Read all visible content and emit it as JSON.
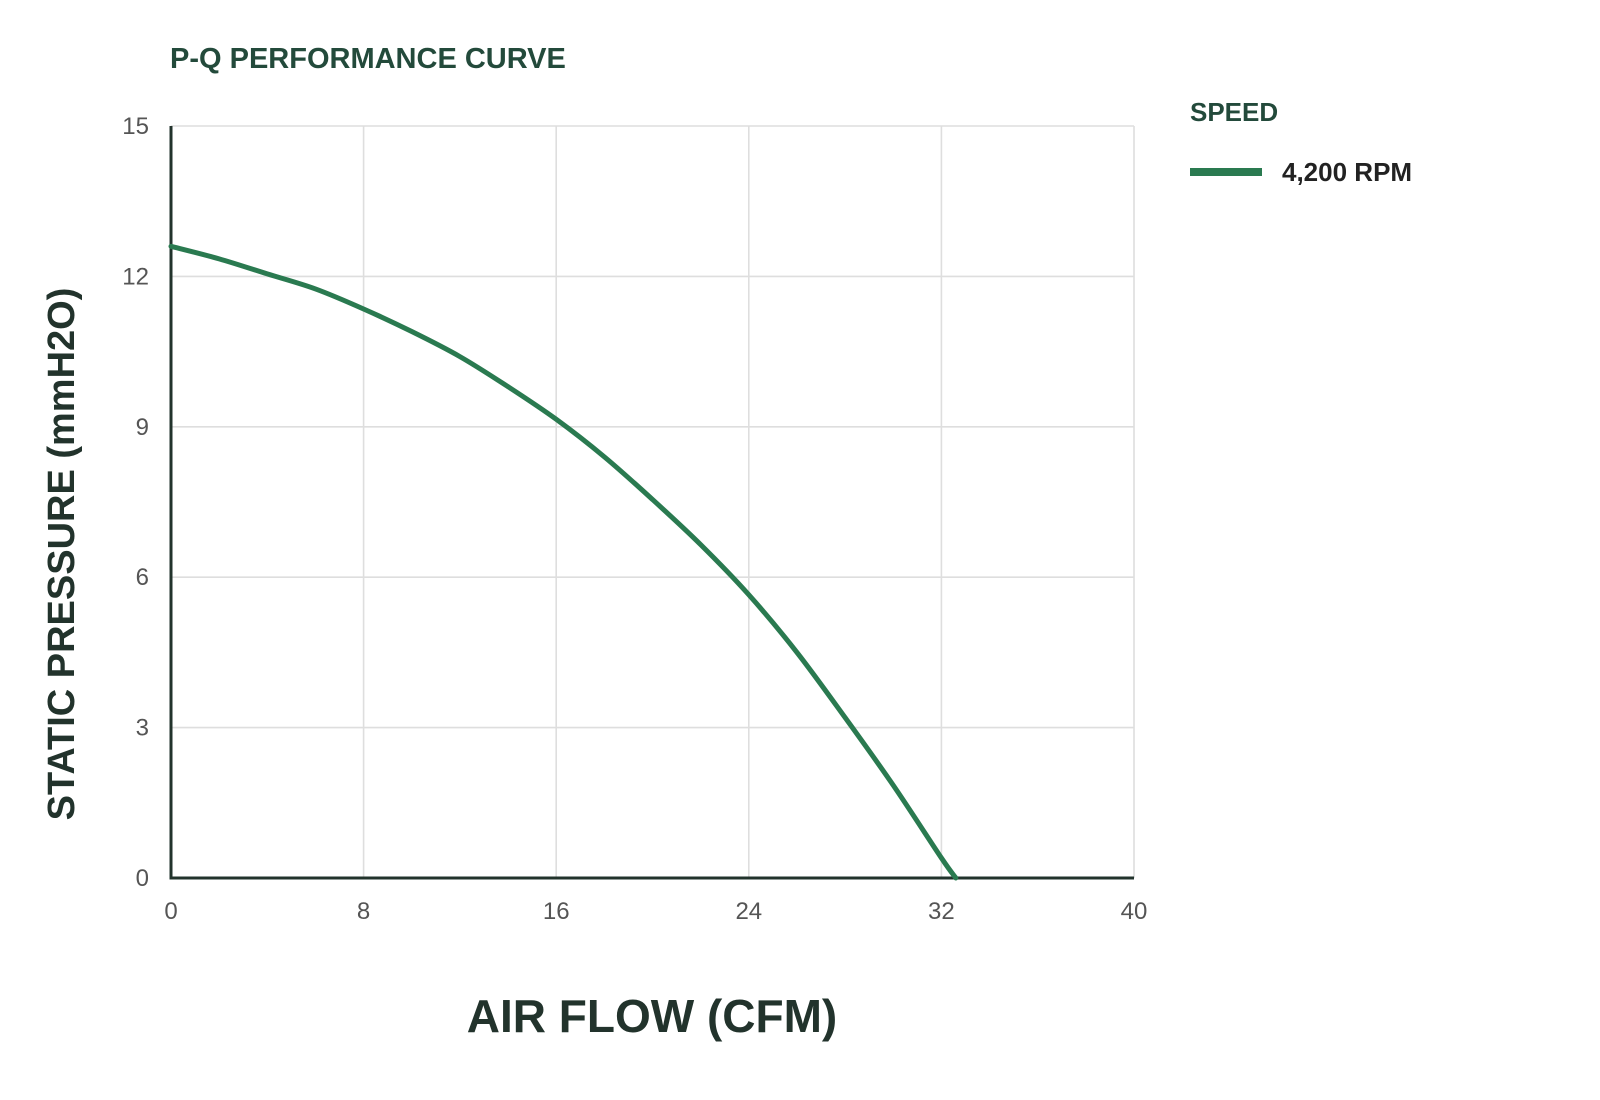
{
  "chart_data": {
    "type": "line",
    "title": "P-Q PERFORMANCE CURVE",
    "xlabel": "AIR FLOW (CFM)",
    "ylabel": "STATIC PRESSURE (mmH2O)",
    "xlim": [
      0,
      40
    ],
    "ylim": [
      0,
      15
    ],
    "xticks": [
      "0",
      "8",
      "16",
      "24",
      "32",
      "40"
    ],
    "yticks": [
      "0",
      "3",
      "6",
      "9",
      "12",
      "15"
    ],
    "grid": true,
    "legend": {
      "title": "SPEED",
      "position": "right"
    },
    "series": [
      {
        "name": "4,200 RPM",
        "color": "#2a7a50",
        "x": [
          0,
          2,
          4,
          6,
          8,
          10,
          12,
          14,
          16,
          18,
          20,
          22,
          24,
          26,
          28,
          30,
          32,
          32.6
        ],
        "y": [
          12.6,
          12.35,
          12.05,
          11.75,
          11.35,
          10.9,
          10.4,
          9.8,
          9.15,
          8.4,
          7.55,
          6.65,
          5.65,
          4.5,
          3.2,
          1.85,
          0.4,
          0
        ]
      }
    ]
  }
}
